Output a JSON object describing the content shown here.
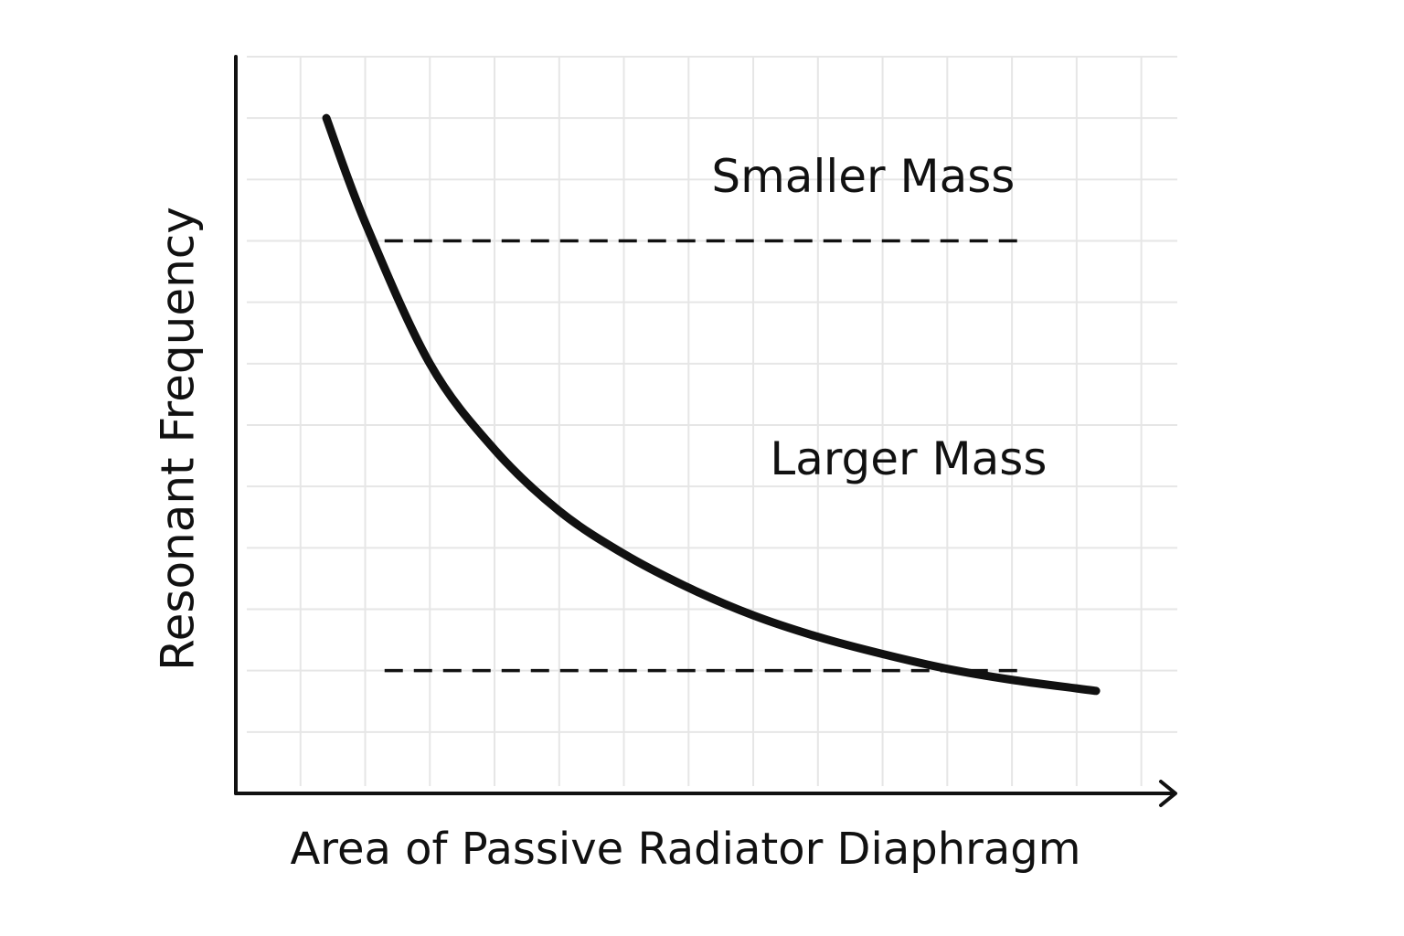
{
  "chart_data": {
    "type": "line",
    "title": "",
    "xlabel": "Area of Passive Radiator Diaphragm",
    "ylabel": "Resonant Frequency",
    "grid": true,
    "xlim": [
      0,
      14.5
    ],
    "ylim": [
      0,
      12
    ],
    "series": [
      {
        "points": [
          [
            1.4,
            11.0
          ],
          [
            2.0,
            9.3
          ],
          [
            3.0,
            7.0
          ],
          [
            4.0,
            5.6
          ],
          [
            5.0,
            4.6
          ],
          [
            6.0,
            3.9
          ],
          [
            7.0,
            3.35
          ],
          [
            8.0,
            2.9
          ],
          [
            9.0,
            2.55
          ],
          [
            10.0,
            2.27
          ],
          [
            11.0,
            2.03
          ],
          [
            12.0,
            1.85
          ],
          [
            13.0,
            1.71
          ],
          [
            13.3,
            1.67
          ]
        ]
      }
    ],
    "reference_lines": [
      {
        "y": 9.0,
        "x_start": 2.3,
        "x_end": 12.2,
        "style": "dashed",
        "color": "#111111"
      },
      {
        "y": 2.0,
        "x_start": 2.3,
        "x_end": 12.2,
        "style": "dashed",
        "color": "#111111"
      }
    ],
    "annotations": [
      {
        "text": "Smaller Mass",
        "x": 9.7,
        "y": 10.0
      },
      {
        "text": "Larger Mass",
        "x": 10.4,
        "y": 5.4
      }
    ],
    "colors": {
      "line": "#111111",
      "axis": "#111111",
      "grid": "#e6e6e6",
      "text": "#111111"
    }
  }
}
